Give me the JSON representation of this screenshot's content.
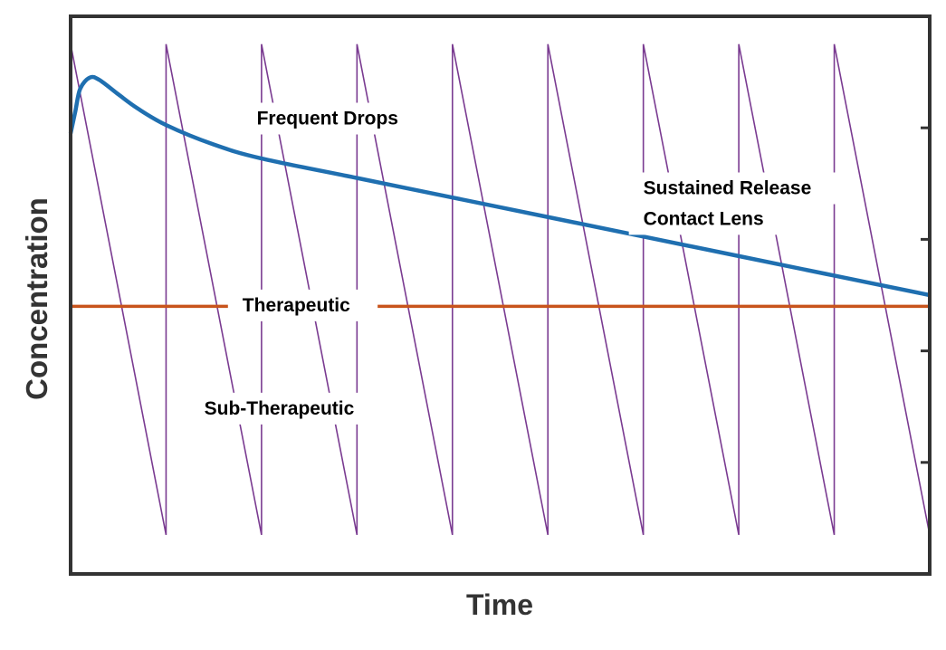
{
  "chart_data": {
    "type": "line",
    "title": "",
    "xlabel": "Time",
    "ylabel": "Concentration",
    "xlim": [
      0,
      9
    ],
    "ylim": [
      0,
      10
    ],
    "grid": false,
    "legend": "none",
    "tick_labels": "none",
    "y_ticks": [
      2,
      4,
      6,
      8
    ],
    "therapeutic_level": 4.8,
    "series": [
      {
        "color": "#7a3b91",
        "style": "sawtooth",
        "x": [
          0,
          1,
          1,
          2,
          2,
          3,
          3,
          4,
          4,
          5,
          5,
          6,
          6,
          7,
          7,
          8,
          8,
          9
        ],
        "y": [
          9.5,
          0.7,
          9.5,
          0.7,
          9.5,
          0.7,
          9.5,
          0.7,
          9.5,
          0.7,
          9.5,
          0.7,
          9.5,
          0.7,
          9.5,
          0.7,
          9.5,
          0.7
        ]
      },
      {
        "color": "#1f6fb0",
        "style": "smooth",
        "x": [
          0,
          0.05,
          0.1,
          0.2,
          0.3,
          0.5,
          0.7,
          1.0,
          1.5,
          2.0,
          3.0,
          4.0,
          5.0,
          6.0,
          7.0,
          8.0,
          9.0
        ],
        "y": [
          7.9,
          8.3,
          8.7,
          8.9,
          8.86,
          8.6,
          8.35,
          8.05,
          7.7,
          7.45,
          7.1,
          6.75,
          6.4,
          6.05,
          5.7,
          5.35,
          5.0
        ]
      },
      {
        "color": "#c8541c",
        "style": "flat",
        "x": [
          0,
          9
        ],
        "y": [
          4.8,
          4.8
        ]
      }
    ],
    "annotations": [
      {
        "text": "Frequent Drops",
        "x": 1.95,
        "y": 8.15
      },
      {
        "text": "Sustained Release",
        "x": 6.0,
        "y": 6.9
      },
      {
        "text": "Contact Lens",
        "x": 6.0,
        "y": 6.35
      },
      {
        "text": "Therapeutic",
        "x": 1.8,
        "y": 4.8
      },
      {
        "text": "Sub-Therapeutic",
        "x": 1.4,
        "y": 2.95
      }
    ]
  }
}
